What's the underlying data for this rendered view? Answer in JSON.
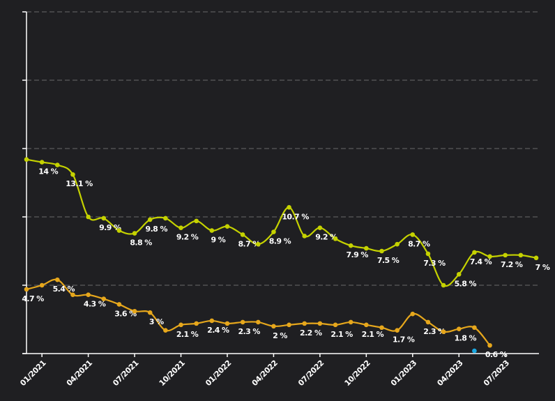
{
  "chart_data": {
    "type": "line",
    "categories": [
      null,
      "01/2021",
      null,
      null,
      "04/2021",
      null,
      null,
      "07/2021",
      null,
      null,
      "10/2021",
      null,
      null,
      "01/2022",
      null,
      null,
      "04/2022",
      null,
      null,
      "07/2022",
      null,
      null,
      "10/2022",
      null,
      null,
      "01/2023",
      null,
      null,
      "04/2023",
      null,
      null,
      "07/2023",
      null,
      null
    ],
    "series": [
      {
        "color": "#c5d200",
        "values": [
          14.2,
          14,
          13.8,
          13.1,
          10.0,
          9.9,
          9.0,
          8.8,
          9.8,
          9.9,
          9.2,
          9.7,
          9,
          9.3,
          8.7,
          8.0,
          8.9,
          10.7,
          8.6,
          9.2,
          8.4,
          7.9,
          7.7,
          7.5,
          8.0,
          8.7,
          7.3,
          5.0,
          5.8,
          7.4,
          7.1,
          7.2,
          7.2,
          7
        ],
        "value_labels": [
          null,
          "14 %",
          null,
          "13.1 %",
          null,
          "9.9 %",
          null,
          "8.8 %",
          "9.8 %",
          null,
          "9.2 %",
          null,
          "9 %",
          null,
          "8.7 %",
          null,
          "8.9 %",
          "10.7 %",
          null,
          "9.2 %",
          null,
          "7.9 %",
          null,
          "7.5 %",
          null,
          "8.7 %",
          "7.3 %",
          null,
          "5.8 %",
          "7.4 %",
          null,
          "7.2 %",
          null,
          "7 %"
        ]
      },
      {
        "color": "#e6a71c",
        "values": [
          4.7,
          5.0,
          5.4,
          4.3,
          4.3,
          4.0,
          3.6,
          3.1,
          3,
          1.7,
          2.1,
          2.2,
          2.4,
          2.2,
          2.3,
          2.3,
          2,
          2.1,
          2.2,
          2.2,
          2.1,
          2.3,
          2.1,
          1.9,
          1.7,
          2.9,
          2.3,
          1.6,
          1.8,
          1.9,
          0.6,
          null,
          null,
          null
        ],
        "value_labels": [
          "4.7 %",
          null,
          "5.4 %",
          null,
          "4.3 %",
          null,
          "3.6 %",
          null,
          "3 %",
          null,
          "2.1 %",
          null,
          "2.4 %",
          null,
          "2.3 %",
          null,
          "2 %",
          null,
          "2.2 %",
          null,
          "2.1 %",
          null,
          "2.1 %",
          null,
          "1.7 %",
          null,
          "2.3 %",
          null,
          "1.8 %",
          null,
          "0.6 %",
          null,
          null,
          null
        ]
      },
      {
        "color": "#1aa7e0",
        "values": [
          null,
          null,
          null,
          null,
          null,
          null,
          null,
          null,
          null,
          null,
          null,
          null,
          null,
          null,
          null,
          null,
          null,
          null,
          null,
          null,
          null,
          null,
          null,
          null,
          null,
          null,
          null,
          null,
          null,
          0.2,
          null,
          null,
          null,
          null
        ]
      }
    ],
    "ylim": [
      0,
      25
    ],
    "yticks": [
      0,
      5,
      10,
      15,
      20,
      25
    ],
    "grid": true
  }
}
